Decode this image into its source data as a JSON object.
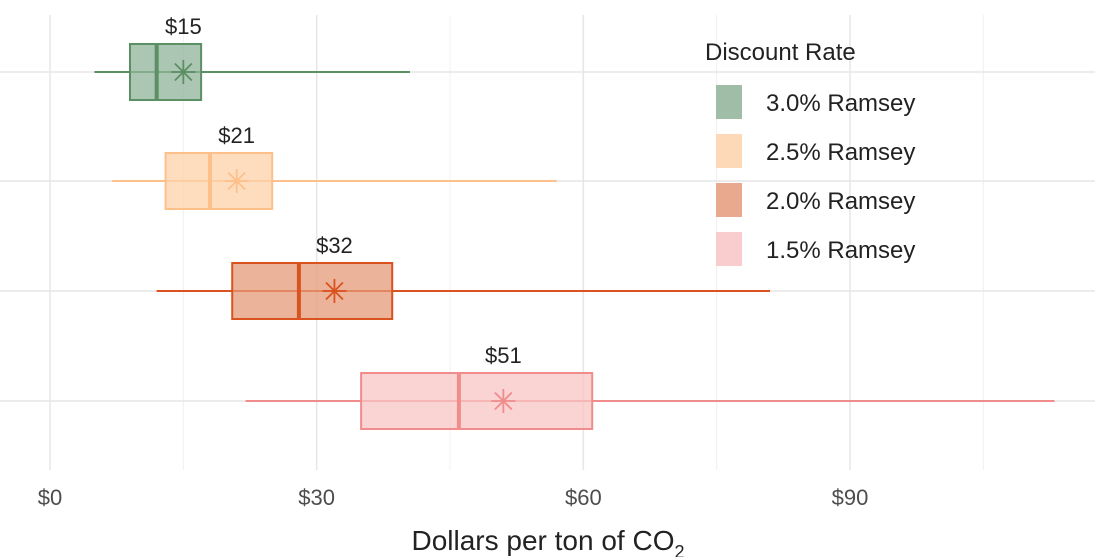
{
  "chart_data": {
    "type": "boxplot",
    "orientation": "horizontal",
    "xlabel_main": "Dollars per ton of CO",
    "xlabel_sub": "2",
    "xlim": [
      -5,
      117
    ],
    "x_ticks": [
      0,
      30,
      60,
      90
    ],
    "x_tick_labels": [
      "$0",
      "$30",
      "$60",
      "$90"
    ],
    "grid": true,
    "legend": {
      "title": "Discount Rate",
      "position": "top-right"
    },
    "series": [
      {
        "name": "3.0% Ramsey",
        "color": "#5b8f64",
        "fill": "#8fb398",
        "whisker_low": 5,
        "q1": 9,
        "median": 12,
        "q3": 17,
        "whisker_high": 40.5,
        "mean": 15,
        "mean_label": "$15"
      },
      {
        "name": "2.5% Ramsey",
        "color": "#fdc08a",
        "fill": "#fed2aa",
        "whisker_low": 7,
        "q1": 13,
        "median": 18,
        "q3": 25,
        "whisker_high": 57,
        "mean": 21,
        "mean_label": "$21"
      },
      {
        "name": "2.0% Ramsey",
        "color": "#d9521f",
        "fill": "#e59a7a",
        "whisker_low": 12,
        "q1": 20.5,
        "median": 28,
        "q3": 38.5,
        "whisker_high": 81,
        "mean": 32,
        "mean_label": "$32"
      },
      {
        "name": "1.5% Ramsey",
        "color": "#f08c8c",
        "fill": "#f8c4c4",
        "whisker_low": 22,
        "q1": 35,
        "median": 46,
        "q3": 61,
        "whisker_high": 113,
        "mean": 51,
        "mean_label": "$51"
      }
    ]
  }
}
